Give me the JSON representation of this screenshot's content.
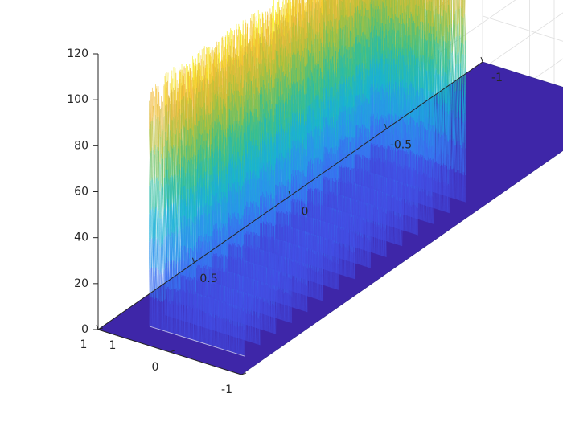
{
  "chart_data": {
    "type": "surface",
    "title": "",
    "xlabel": "",
    "ylabel": "",
    "zlabel": "",
    "xlim": [
      -1,
      1
    ],
    "ylim": [
      -1,
      1
    ],
    "zlim": [
      0,
      120
    ],
    "grid": true,
    "colormap": "parula",
    "x_ticks": [
      {
        "value": 1,
        "label": "1"
      },
      {
        "value": 0.5,
        "label": "0.5"
      },
      {
        "value": 0,
        "label": "0"
      },
      {
        "value": -0.5,
        "label": "-0.5"
      },
      {
        "value": -1,
        "label": "-1"
      }
    ],
    "y_ticks": [
      {
        "value": 1,
        "label": "1"
      },
      {
        "value": 0,
        "label": "0"
      },
      {
        "value": -1,
        "label": "-1"
      }
    ],
    "z_ticks": [
      {
        "value": 0,
        "label": "0"
      },
      {
        "value": 20,
        "label": "20"
      },
      {
        "value": 40,
        "label": "40"
      },
      {
        "value": 60,
        "label": "60"
      },
      {
        "value": 80,
        "label": "80"
      },
      {
        "value": 100,
        "label": "100"
      },
      {
        "value": 120,
        "label": "120"
      }
    ],
    "surface_region": {
      "x_range": [
        -0.25,
        0.9
      ],
      "y_range": [
        -0.78,
        0.55
      ],
      "z_floor": 0,
      "z_peak_range": [
        95,
        115
      ]
    },
    "base_color": "#3e26a8",
    "colormap_stops": [
      "#3e26a8",
      "#4455f0",
      "#2f8cf0",
      "#17b3d6",
      "#35c08d",
      "#a6c13a",
      "#f2b73a",
      "#f9fb0e"
    ]
  }
}
